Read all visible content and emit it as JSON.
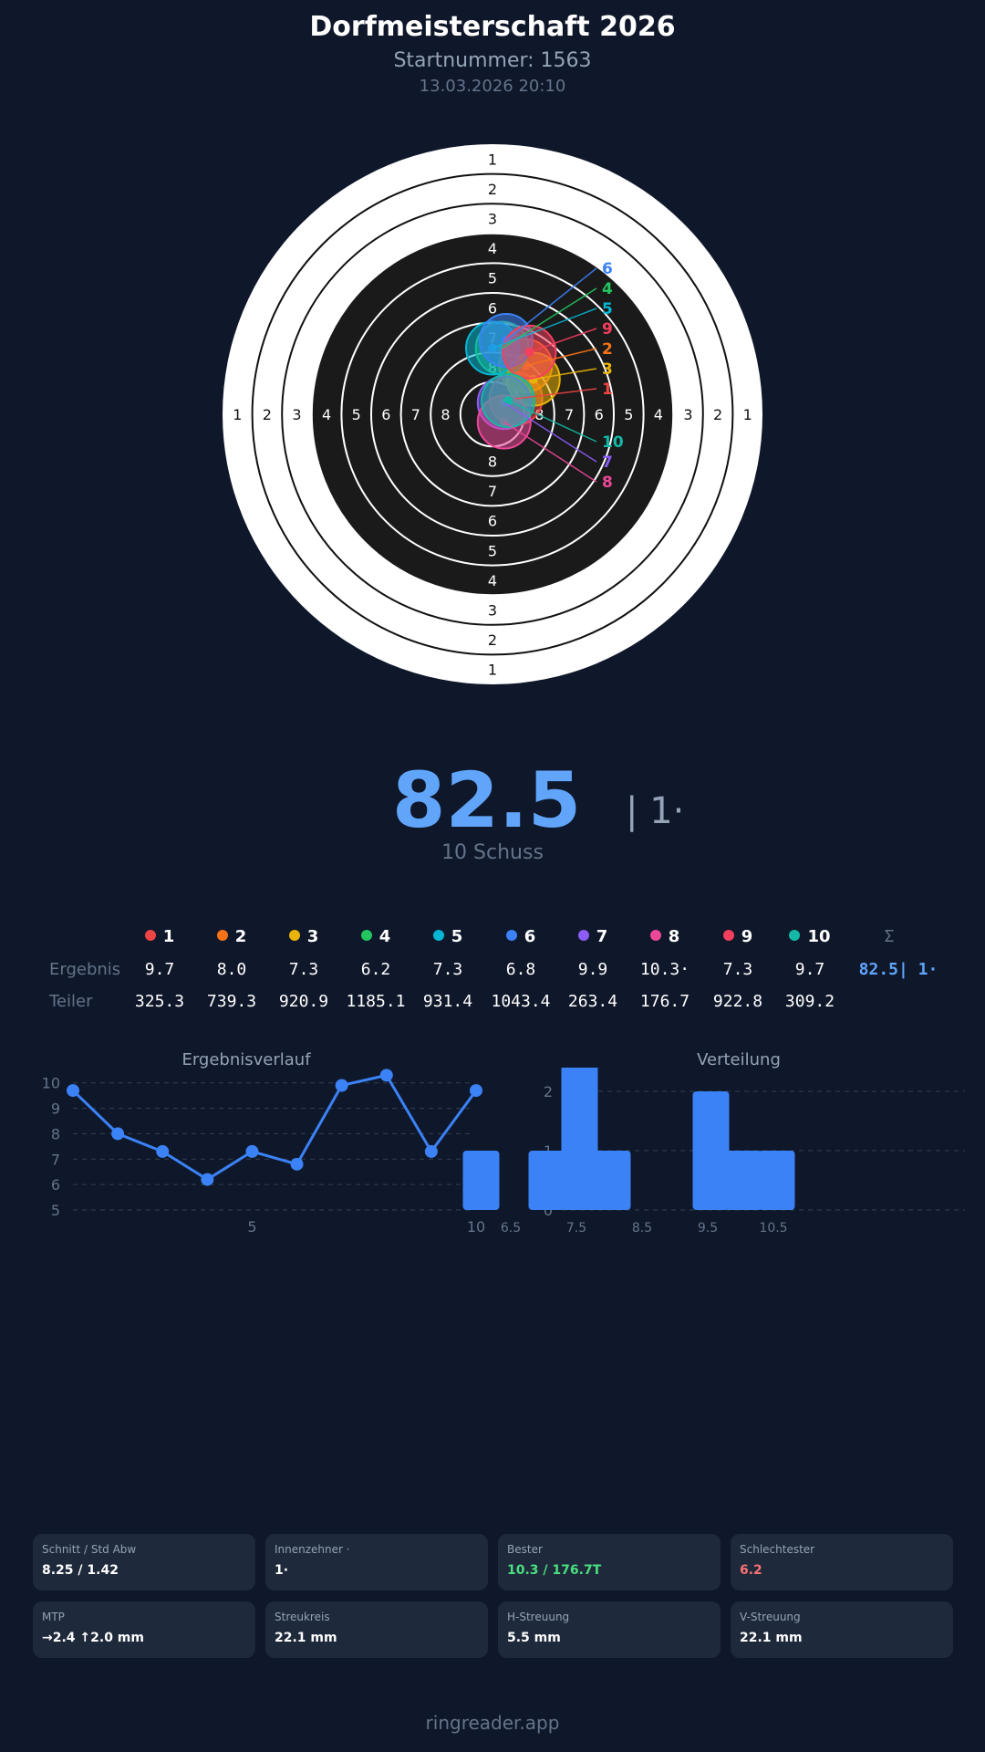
{
  "header": {
    "title": "Dorfmeisterschaft 2026",
    "start_number": "Startnummer: 1563",
    "datetime": "13.03.2026 20:10"
  },
  "target": {
    "ring_labels": [
      "1",
      "2",
      "3",
      "4",
      "5",
      "6",
      "7",
      "8"
    ],
    "shots": [
      {
        "n": "1",
        "color": "#ef4444",
        "dx": 12,
        "dy": -8
      },
      {
        "n": "2",
        "color": "#f97316",
        "dx": 17,
        "dy": -25
      },
      {
        "n": "3",
        "color": "#eab308",
        "dx": 21,
        "dy": -18
      },
      {
        "n": "4",
        "color": "#22c55e",
        "dx": 5,
        "dy": -34
      },
      {
        "n": "5",
        "color": "#06b6d4",
        "dx": 0,
        "dy": -34
      },
      {
        "n": "6",
        "color": "#3b82f6",
        "dx": 7,
        "dy": -38
      },
      {
        "n": "7",
        "color": "#8b5cf6",
        "dx": 6,
        "dy": -6
      },
      {
        "n": "8",
        "color": "#ec4899",
        "dx": 6,
        "dy": 4
      },
      {
        "n": "9",
        "color": "#f43f5e",
        "dx": 19,
        "dy": -32
      },
      {
        "n": "10",
        "color": "#14b8a6",
        "dx": 8,
        "dy": -7
      }
    ]
  },
  "summary": {
    "total": "82.5",
    "inner_tens": "| 1·",
    "shots": "10 Schuss"
  },
  "table": {
    "ergebnis_label": "Ergebnis",
    "teiler_label": "Teiler",
    "sum_symbol": "Σ",
    "ergebnis": [
      "9.7",
      "8.0",
      "7.3",
      "6.2",
      "7.3",
      "6.8",
      "9.9",
      "10.3·",
      "7.3",
      "9.7"
    ],
    "teiler": [
      "325.3",
      "739.3",
      "920.9",
      "1185.1",
      "931.4",
      "1043.4",
      "263.4",
      "176.7",
      "922.8",
      "309.2"
    ],
    "sum": "82.5| 1·"
  },
  "chart_data": [
    {
      "type": "line",
      "title": "Ergebnisverlauf",
      "x": [
        1,
        2,
        3,
        4,
        5,
        6,
        7,
        8,
        9,
        10
      ],
      "values": [
        9.7,
        8.0,
        7.3,
        6.2,
        7.3,
        6.8,
        9.9,
        10.3,
        7.3,
        9.7
      ],
      "ylim": [
        5,
        12
      ],
      "yticks": [
        "5",
        "6",
        "7",
        "8",
        "9",
        "10",
        "11",
        "12"
      ],
      "xticks": [
        "5",
        "10"
      ],
      "grid": true,
      "color": "#3b82f6"
    },
    {
      "type": "bar",
      "title": "Verteilung",
      "bins": [
        6.0,
        7.0,
        7.5,
        8.0,
        9.5,
        10.0,
        10.5
      ],
      "values": [
        1,
        1,
        3,
        1,
        2,
        1,
        1
      ],
      "ylim": [
        0,
        3
      ],
      "yticks": [
        "0",
        "1",
        "2",
        "3"
      ],
      "xticks": [
        "6.5",
        "7.5",
        "8.5",
        "9.5",
        "10.5"
      ],
      "grid": true,
      "color": "#3b82f6"
    }
  ],
  "stats": [
    {
      "label": "Schnitt / Std Abw",
      "value": "8.25 / 1.42",
      "color": "#ffffff"
    },
    {
      "label": "Innenzehner ·",
      "value": "1·",
      "color": "#ffffff"
    },
    {
      "label": "Bester",
      "value": "10.3 / 176.7T",
      "color": "#4ade80"
    },
    {
      "label": "Schlechtester",
      "value": "6.2",
      "color": "#f87171"
    },
    {
      "label": "MTP",
      "value": "→2.4 ↑2.0 mm",
      "color": "#ffffff"
    },
    {
      "label": "Streukreis",
      "value": "22.1 mm",
      "color": "#ffffff"
    },
    {
      "label": "H-Streuung",
      "value": "5.5 mm",
      "color": "#ffffff"
    },
    {
      "label": "V-Streuung",
      "value": "22.1 mm",
      "color": "#ffffff"
    }
  ],
  "footer": "ringreader.app"
}
